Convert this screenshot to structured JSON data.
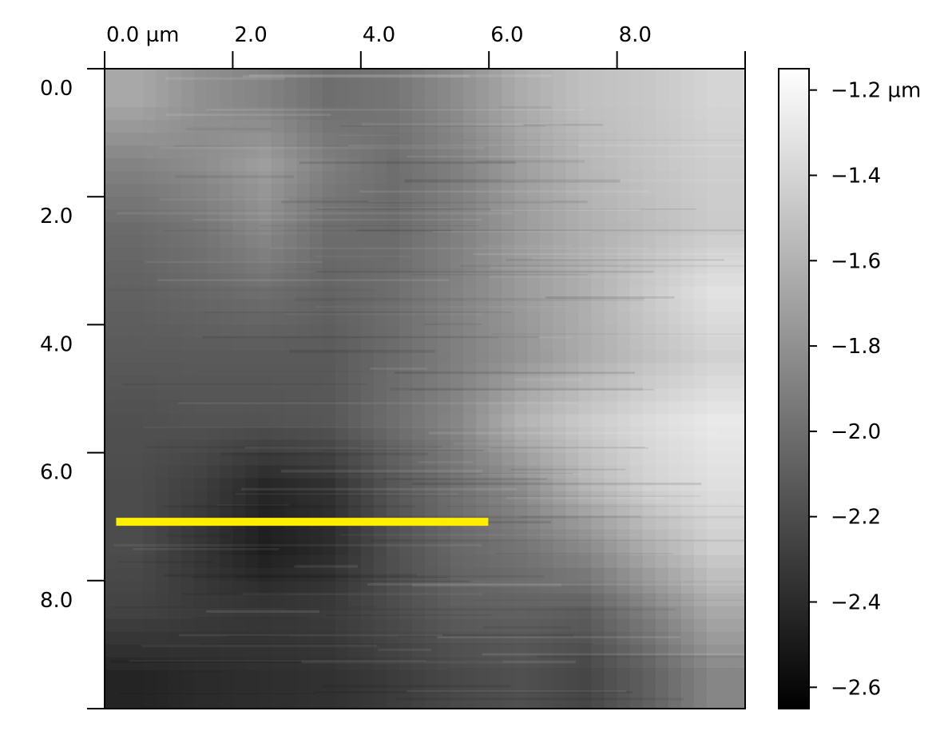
{
  "chart_data": {
    "type": "heatmap",
    "title": "",
    "colormap": "gray",
    "colors": {
      "low": "#000000",
      "high": "#ffffff",
      "profile_line": "#ffee00",
      "axis": "#000000"
    },
    "x_axis": {
      "unit": "µm",
      "range": [
        0,
        10
      ],
      "ticks": [
        {
          "value": 0,
          "label": "0.0 µm"
        },
        {
          "value": 2,
          "label": "2.0"
        },
        {
          "value": 4,
          "label": "4.0"
        },
        {
          "value": 6,
          "label": "6.0"
        },
        {
          "value": 8,
          "label": "8.0"
        }
      ],
      "position": "top"
    },
    "y_axis": {
      "unit": "µm",
      "range": [
        0,
        10
      ],
      "ticks": [
        {
          "value": 0,
          "label": "0.0"
        },
        {
          "value": 2,
          "label": "2.0"
        },
        {
          "value": 4,
          "label": "4.0"
        },
        {
          "value": 6,
          "label": "6.0"
        },
        {
          "value": 8,
          "label": "8.0"
        }
      ],
      "direction": "down"
    },
    "colorbar": {
      "unit": "µm",
      "range": [
        -2.65,
        -1.15
      ],
      "ticks": [
        {
          "value": -1.2,
          "label": "−1.2 µm"
        },
        {
          "value": -1.4,
          "label": "−1.4"
        },
        {
          "value": -1.6,
          "label": "−1.6"
        },
        {
          "value": -1.8,
          "label": "−1.8"
        },
        {
          "value": -2.0,
          "label": "−2.0"
        },
        {
          "value": -2.2,
          "label": "−2.2"
        },
        {
          "value": -2.4,
          "label": "−2.4"
        },
        {
          "value": -2.6,
          "label": "−2.6"
        }
      ]
    },
    "grid": false,
    "height_map": {
      "x": [
        0.5,
        1.5,
        2.5,
        3.5,
        4.5,
        5.5,
        6.5,
        7.5,
        8.5,
        9.5
      ],
      "y": [
        0.5,
        1.5,
        2.5,
        3.5,
        4.5,
        5.5,
        6.5,
        7.5,
        8.5,
        9.5
      ],
      "z": [
        [
          -1.66,
          -1.8,
          -1.88,
          -2.0,
          -1.96,
          -1.82,
          -1.64,
          -1.52,
          -1.48,
          -1.4
        ],
        [
          -1.88,
          -1.82,
          -1.72,
          -1.9,
          -2.0,
          -1.9,
          -1.72,
          -1.58,
          -1.5,
          -1.44
        ],
        [
          -2.02,
          -1.96,
          -1.84,
          -2.0,
          -2.02,
          -1.9,
          -1.74,
          -1.62,
          -1.54,
          -1.46
        ],
        [
          -2.08,
          -2.04,
          -2.0,
          -2.06,
          -2.0,
          -1.88,
          -1.74,
          -1.62,
          -1.46,
          -1.32
        ],
        [
          -2.12,
          -2.12,
          -2.12,
          -2.12,
          -2.02,
          -1.9,
          -1.78,
          -1.64,
          -1.52,
          -1.42
        ],
        [
          -2.18,
          -2.16,
          -2.16,
          -2.14,
          -2.0,
          -1.86,
          -1.6,
          -1.46,
          -1.36,
          -1.28
        ],
        [
          -2.2,
          -2.28,
          -2.42,
          -2.36,
          -2.14,
          -1.98,
          -1.82,
          -1.58,
          -1.42,
          -1.34
        ],
        [
          -2.2,
          -2.34,
          -2.48,
          -2.4,
          -2.18,
          -2.04,
          -1.96,
          -1.84,
          -1.62,
          -1.44
        ],
        [
          -2.26,
          -2.3,
          -2.32,
          -2.3,
          -2.2,
          -2.1,
          -2.08,
          -2.1,
          -1.9,
          -1.66
        ],
        [
          -2.44,
          -2.4,
          -2.38,
          -2.36,
          -2.3,
          -2.22,
          -2.18,
          -2.24,
          -2.08,
          -1.86
        ]
      ]
    },
    "annotations": [
      {
        "type": "profile-line",
        "x": [
          0.18,
          5.99
        ],
        "y": [
          7.08,
          7.08
        ],
        "color": "#ffee00"
      }
    ]
  }
}
